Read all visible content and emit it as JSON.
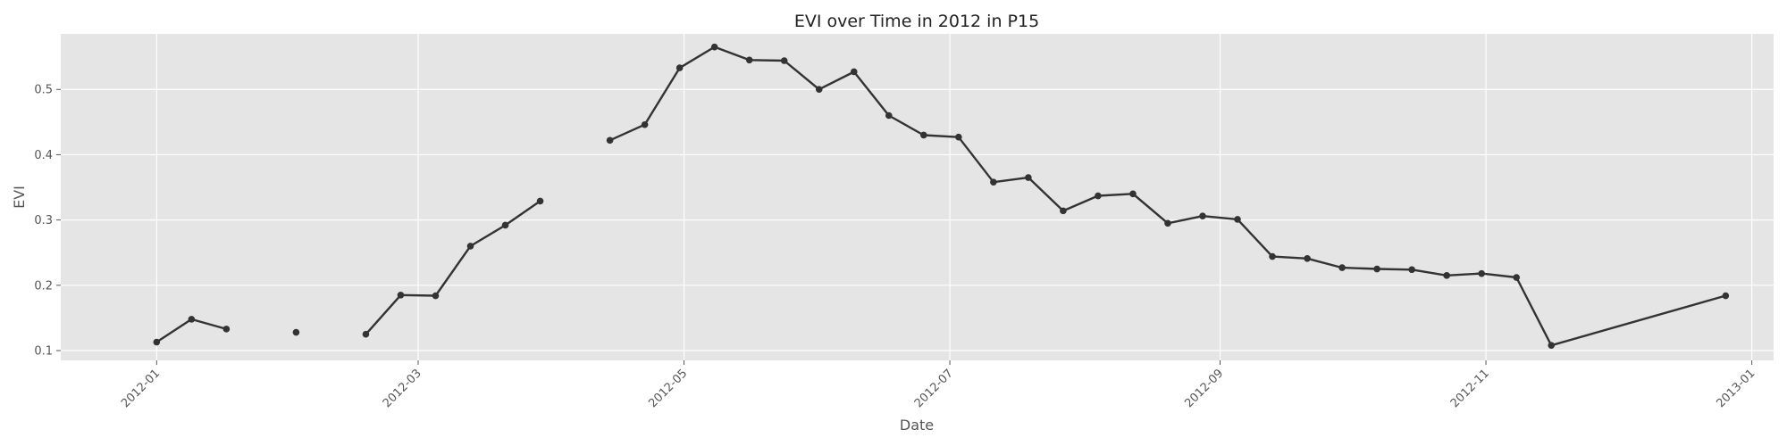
{
  "chart_data": {
    "type": "line",
    "title": "EVI over Time in 2012 in P15",
    "xlabel": "Date",
    "ylabel": "EVI",
    "x_range": [
      "2011-12-10",
      "2013-01-06"
    ],
    "ylim": [
      0.085,
      0.585
    ],
    "grid": true,
    "x_ticks": [
      "2012-01",
      "2012-03",
      "2012-05",
      "2012-07",
      "2012-09",
      "2012-11",
      "2013-01"
    ],
    "y_ticks": [
      0.1,
      0.2,
      0.3,
      0.4,
      0.5
    ],
    "series": [
      {
        "color": "#333333",
        "points": [
          {
            "date": "2012-01-01",
            "value": 0.113
          },
          {
            "date": "2012-01-09",
            "value": 0.148
          },
          {
            "date": "2012-01-17",
            "value": 0.133
          },
          {
            "date": "2012-01-25",
            "value": null
          },
          {
            "date": "2012-02-02",
            "value": 0.128
          },
          {
            "date": "2012-02-10",
            "value": null
          },
          {
            "date": "2012-02-18",
            "value": 0.125
          },
          {
            "date": "2012-02-26",
            "value": 0.185
          },
          {
            "date": "2012-03-05",
            "value": 0.184
          },
          {
            "date": "2012-03-13",
            "value": 0.26
          },
          {
            "date": "2012-03-21",
            "value": 0.292
          },
          {
            "date": "2012-03-29",
            "value": 0.329
          },
          {
            "date": "2012-04-06",
            "value": null
          },
          {
            "date": "2012-04-14",
            "value": 0.422
          },
          {
            "date": "2012-04-22",
            "value": 0.446
          },
          {
            "date": "2012-04-30",
            "value": 0.533
          },
          {
            "date": "2012-05-08",
            "value": 0.565
          },
          {
            "date": "2012-05-16",
            "value": 0.545
          },
          {
            "date": "2012-05-24",
            "value": 0.544
          },
          {
            "date": "2012-06-01",
            "value": 0.5
          },
          {
            "date": "2012-06-09",
            "value": 0.527
          },
          {
            "date": "2012-06-17",
            "value": 0.46
          },
          {
            "date": "2012-06-25",
            "value": 0.43
          },
          {
            "date": "2012-07-03",
            "value": 0.427
          },
          {
            "date": "2012-07-11",
            "value": 0.358
          },
          {
            "date": "2012-07-19",
            "value": 0.365
          },
          {
            "date": "2012-07-27",
            "value": 0.314
          },
          {
            "date": "2012-08-04",
            "value": 0.337
          },
          {
            "date": "2012-08-12",
            "value": 0.34
          },
          {
            "date": "2012-08-20",
            "value": 0.295
          },
          {
            "date": "2012-08-28",
            "value": 0.306
          },
          {
            "date": "2012-09-05",
            "value": 0.301
          },
          {
            "date": "2012-09-13",
            "value": 0.244
          },
          {
            "date": "2012-09-21",
            "value": 0.241
          },
          {
            "date": "2012-09-29",
            "value": 0.227
          },
          {
            "date": "2012-10-07",
            "value": 0.225
          },
          {
            "date": "2012-10-15",
            "value": 0.224
          },
          {
            "date": "2012-10-23",
            "value": 0.215
          },
          {
            "date": "2012-10-31",
            "value": 0.218
          },
          {
            "date": "2012-11-08",
            "value": 0.212
          },
          {
            "date": "2012-11-16",
            "value": 0.108
          },
          {
            "date": "2012-12-26",
            "value": 0.184
          }
        ]
      }
    ]
  }
}
